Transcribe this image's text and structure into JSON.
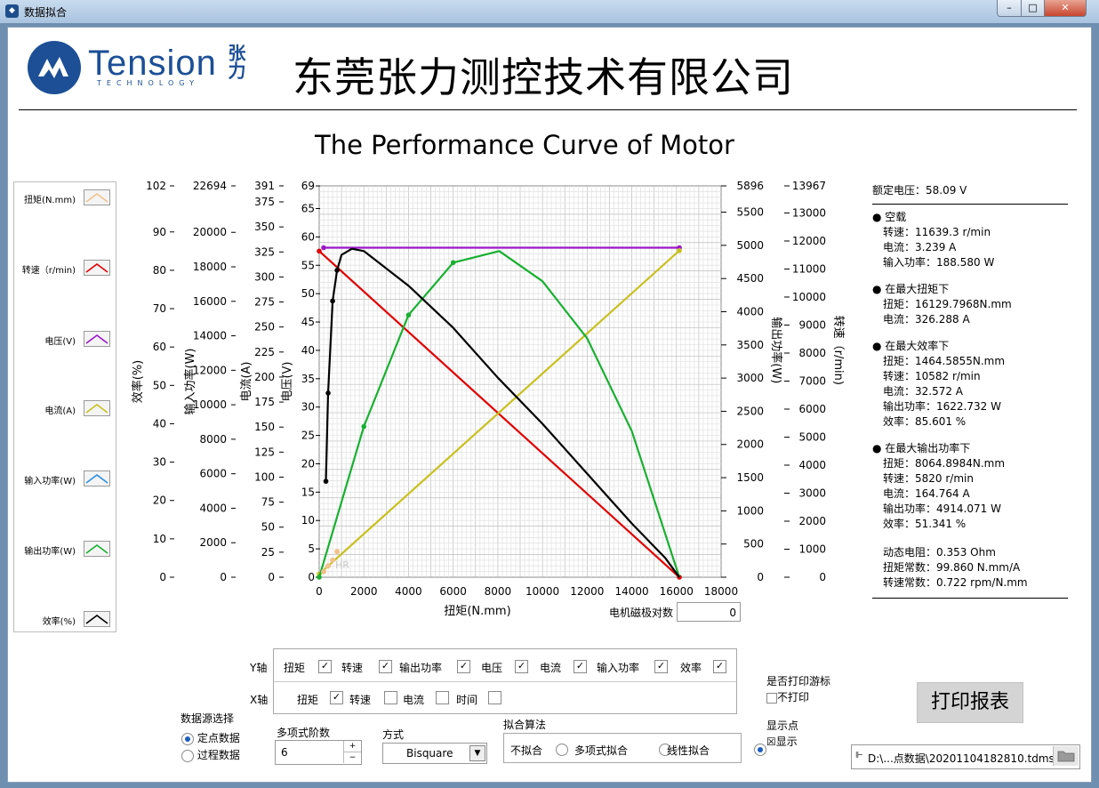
{
  "window": {
    "title": "数据拟合",
    "min": "–",
    "max": "□",
    "close": "✕"
  },
  "header": {
    "logo_text": "Tension",
    "logo_sub": "TECHNOLOGY",
    "logo_cn": "张力",
    "company": "东莞张力测控技术有限公司"
  },
  "chart": {
    "title": "The Performance Curve of Motor",
    "xlabel": "扭矩(N.mm)"
  },
  "legend": [
    {
      "label": "扭矩(N.mm)",
      "color": "#f0c28a"
    },
    {
      "label": "转速（r/min)",
      "color": "#e00000"
    },
    {
      "label": "电压(V)",
      "color": "#9a18c8"
    },
    {
      "label": "电流(A)",
      "color": "#c8c020"
    },
    {
      "label": "输入功率(W)",
      "color": "#2a8fe0"
    },
    {
      "label": "输出功率(W)",
      "color": "#18b030"
    },
    {
      "label": "效率(%)",
      "color": "#000000"
    }
  ],
  "axes": {
    "efficiency": {
      "label": "效率(%)",
      "ticks": [
        "102",
        "90",
        "80",
        "70",
        "60",
        "50",
        "40",
        "30",
        "20",
        "10",
        "0"
      ]
    },
    "input_power": {
      "label": "输入功率(W)",
      "ticks": [
        "22694",
        "20000",
        "18000",
        "16000",
        "14000",
        "12000",
        "10000",
        "8000",
        "6000",
        "4000",
        "2000",
        "0"
      ]
    },
    "current": {
      "label": "电流(A)",
      "ticks": [
        "391",
        "375",
        "350",
        "325",
        "300",
        "275",
        "250",
        "225",
        "200",
        "175",
        "150",
        "125",
        "100",
        "75",
        "50",
        "25",
        "0"
      ]
    },
    "voltage": {
      "label": "电压(V)",
      "ticks": [
        "69",
        "65",
        "60",
        "55",
        "50",
        "45",
        "40",
        "35",
        "30",
        "25",
        "20",
        "15",
        "10",
        "5",
        "0"
      ]
    },
    "output_power": {
      "label": "输出功率(W)",
      "ticks": [
        "5896",
        "5500",
        "5000",
        "4500",
        "4000",
        "3500",
        "3000",
        "2500",
        "2000",
        "1500",
        "1000",
        "500",
        "0"
      ]
    },
    "speed": {
      "label": "转速（r/min)",
      "ticks": [
        "13967",
        "13000",
        "12000",
        "11000",
        "10000",
        "9000",
        "8000",
        "7000",
        "6000",
        "5000",
        "4000",
        "3000",
        "2000",
        "1000",
        "0"
      ]
    },
    "x": {
      "ticks": [
        "0",
        "2000",
        "4000",
        "6000",
        "8000",
        "10000",
        "12000",
        "14000",
        "16000",
        "18000"
      ]
    }
  },
  "chart_data": {
    "type": "line",
    "title": "The Performance Curve of Motor",
    "xlabel": "扭矩(N.mm)",
    "xlim": [
      0,
      18000
    ],
    "series": [
      {
        "name": "转速（r/min)",
        "ylim": [
          0,
          13967
        ],
        "x": [
          0,
          16130
        ],
        "y": [
          11639,
          0
        ]
      },
      {
        "name": "电压(V)",
        "ylim": [
          0,
          69
        ],
        "x": [
          200,
          16130
        ],
        "y": [
          58.1,
          58.1
        ]
      },
      {
        "name": "电流(A)",
        "ylim": [
          0,
          391
        ],
        "x": [
          0,
          16130
        ],
        "y": [
          3.2,
          326.3
        ]
      },
      {
        "name": "输出功率(W)",
        "ylim": [
          0,
          5896
        ],
        "x": [
          0,
          2000,
          4000,
          6000,
          8065,
          10000,
          12000,
          14000,
          16130
        ],
        "y": [
          0,
          2270,
          3950,
          4740,
          4914,
          4460,
          3600,
          2200,
          0
        ]
      },
      {
        "name": "效率(%)",
        "ylim": [
          0,
          102
        ],
        "x": [
          300,
          400,
          600,
          800,
          1000,
          1465,
          2000,
          4000,
          6000,
          8000,
          10000,
          12000,
          14000,
          15500,
          16130
        ],
        "y": [
          25,
          48,
          72,
          80,
          84,
          85.6,
          85,
          76,
          65,
          52,
          40,
          27,
          14,
          5,
          0
        ]
      }
    ]
  },
  "extra": {
    "pole_pairs_label": "电机磁极对数",
    "pole_pairs_value": "0",
    "watermark": "HR"
  },
  "info": {
    "rated_voltage": "额定电压：58.09 V",
    "sections": [
      {
        "title": "空载",
        "lines": [
          "转速：11639.3 r/min",
          "电流：3.239 A",
          "输入功率：188.580 W"
        ]
      },
      {
        "title": "在最大扭矩下",
        "lines": [
          "扭矩：16129.7968N.mm",
          "电流：326.288 A"
        ]
      },
      {
        "title": "在最大效率下",
        "lines": [
          "扭矩：1464.5855N.mm",
          "转速：10582  r/min",
          "电流：32.572 A",
          "输出功率：1622.732 W",
          "效率：85.601 %"
        ]
      },
      {
        "title": "在最大输出功率下",
        "lines": [
          "扭矩：8064.8984N.mm",
          "转速：5820  r/min",
          "电流：164.764 A",
          "输出功率：4914.071 W",
          "效率：51.341 %"
        ]
      }
    ],
    "constants": [
      "动态电阻：0.353 Ohm",
      "扭矩常数：99.860 N.mm/A",
      "转速常数：0.722 rpm/N.mm"
    ]
  },
  "controls": {
    "y_axis_label": "Y轴",
    "y_checks": [
      {
        "label": "扭矩",
        "mark": "✓"
      },
      {
        "label": "转速",
        "mark": "✓"
      },
      {
        "label": "输出功率",
        "mark": "✓"
      },
      {
        "label": "电压",
        "mark": "✓"
      },
      {
        "label": "电流",
        "mark": "✓"
      },
      {
        "label": "输入功率",
        "mark": "✓"
      },
      {
        "label": "效率",
        "mark": "✓"
      }
    ],
    "x_axis_label": "X轴",
    "x_checks": [
      {
        "label": "扭矩",
        "mark": "✓"
      },
      {
        "label": "转速",
        "mark": ""
      },
      {
        "label": "电流",
        "mark": ""
      },
      {
        "label": "时间",
        "mark": ""
      }
    ],
    "data_source_label": "数据源选择",
    "source_options": [
      "定点数据",
      "过程数据"
    ],
    "poly_order_label": "多项式阶数",
    "poly_order_value": "6",
    "method_label": "方式",
    "method_value": "Bisquare",
    "algorithm_label": "拟合算法",
    "algorithms": [
      "不拟合",
      "多项式拟合",
      "线性拟合"
    ],
    "print_cursor_label": "是否打印游标",
    "print_cursor_option": "不打印",
    "print_cursor_mark": "",
    "show_points_label": "显示点",
    "show_points_option": "显示",
    "show_points_mark": "☒",
    "print_button": "打印报表",
    "file_path": "D:\\...点数据\\20201104182810.tdms"
  }
}
